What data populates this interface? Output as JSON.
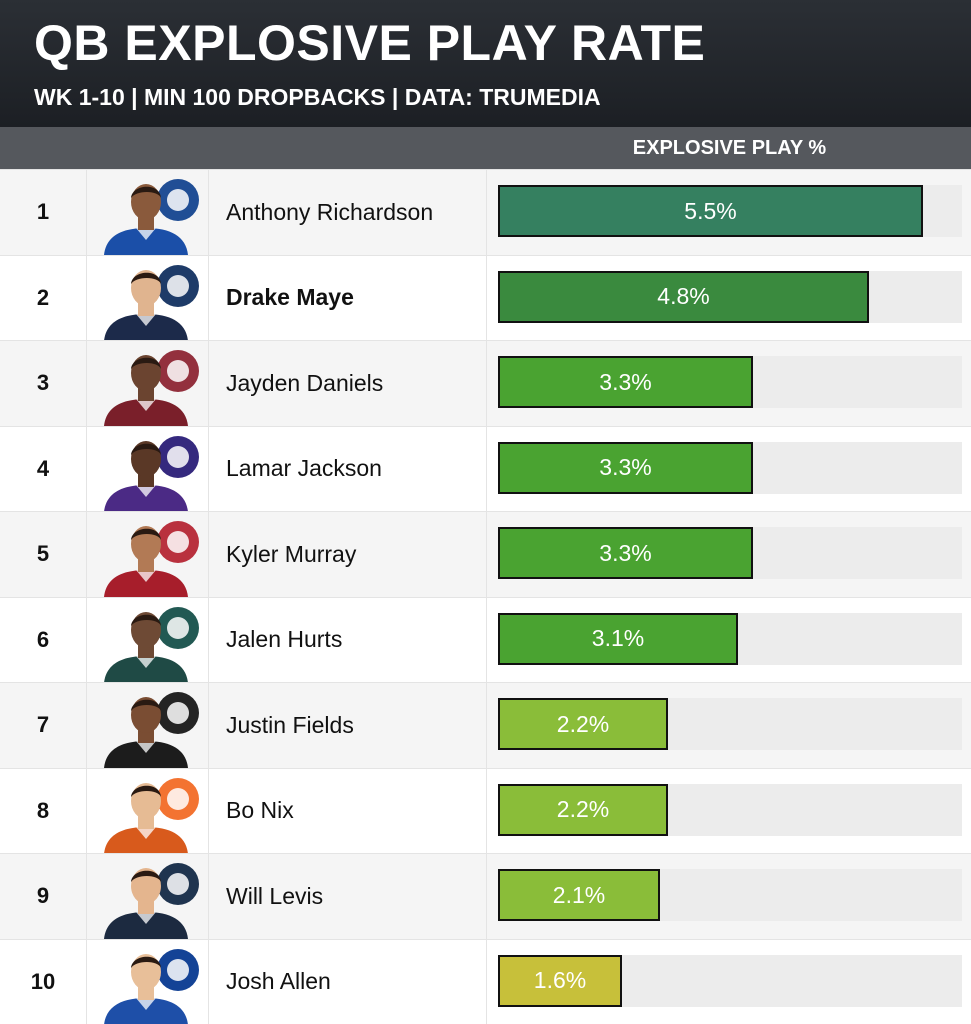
{
  "header": {
    "title": "QB EXPLOSIVE PLAY RATE",
    "subtitle": "WK 1-10 | MIN 100 DROPBACKS | DATA: TRUMEDIA",
    "column_label": "EXPLOSIVE PLAY %"
  },
  "chart_data": {
    "type": "bar",
    "orientation": "horizontal",
    "title": "QB EXPLOSIVE PLAY RATE",
    "subtitle": "WK 1-10 | MIN 100 DROPBACKS | DATA: TRUMEDIA",
    "value_label": "EXPLOSIVE PLAY %",
    "xlim": [
      0,
      6
    ],
    "categories": [
      "Anthony Richardson",
      "Drake Maye",
      "Jayden Daniels",
      "Lamar Jackson",
      "Kyler Murray",
      "Jalen Hurts",
      "Justin Fields",
      "Bo Nix",
      "Will Levis",
      "Josh Allen"
    ],
    "values": [
      5.5,
      4.8,
      3.3,
      3.3,
      3.3,
      3.1,
      2.2,
      2.2,
      2.1,
      1.6
    ],
    "rows": [
      {
        "rank": "1",
        "name": "Anthony Richardson",
        "value": 5.5,
        "label": "5.5%",
        "bar_color": "#358060",
        "bold": false,
        "jersey": "#1b4fa8",
        "logo": "colts-horseshoe-logo",
        "logo_color": "#0d3f8c"
      },
      {
        "rank": "2",
        "name": "Drake Maye",
        "value": 4.8,
        "label": "4.8%",
        "bar_color": "#3a8a3e",
        "bold": true,
        "jersey": "#1c2a4a",
        "logo": "patriots-logo",
        "logo_color": "#0b2a5b"
      },
      {
        "rank": "3",
        "name": "Jayden Daniels",
        "value": 3.3,
        "label": "3.3%",
        "bar_color": "#4aa331",
        "bold": false,
        "jersey": "#7a1f2a",
        "logo": "commanders-w-logo",
        "logo_color": "#8a1e2c"
      },
      {
        "rank": "4",
        "name": "Lamar Jackson",
        "value": 3.3,
        "label": "3.3%",
        "bar_color": "#4aa331",
        "bold": false,
        "jersey": "#4b2a85",
        "logo": "ravens-logo",
        "logo_color": "#241773"
      },
      {
        "rank": "5",
        "name": "Kyler Murray",
        "value": 3.3,
        "label": "3.3%",
        "bar_color": "#4aa331",
        "bold": false,
        "jersey": "#a71e2b",
        "logo": "cardinals-logo",
        "logo_color": "#b3202e"
      },
      {
        "rank": "6",
        "name": "Jalen Hurts",
        "value": 3.1,
        "label": "3.1%",
        "bar_color": "#4aa331",
        "bold": false,
        "jersey": "#1f4a45",
        "logo": "eagles-logo",
        "logo_color": "#0f4b44"
      },
      {
        "rank": "7",
        "name": "Justin Fields",
        "value": 2.2,
        "label": "2.2%",
        "bar_color": "#8abd39",
        "bold": false,
        "jersey": "#1c1c1c",
        "logo": "steelers-logo",
        "logo_color": "#111111"
      },
      {
        "rank": "8",
        "name": "Bo Nix",
        "value": 2.2,
        "label": "2.2%",
        "bar_color": "#8abd39",
        "bold": false,
        "jersey": "#d85a1c",
        "logo": "broncos-logo",
        "logo_color": "#f2671f"
      },
      {
        "rank": "9",
        "name": "Will Levis",
        "value": 2.1,
        "label": "2.1%",
        "bar_color": "#8abd39",
        "bold": false,
        "jersey": "#1c2a40",
        "logo": "titans-logo",
        "logo_color": "#0c2340"
      },
      {
        "rank": "10",
        "name": "Josh Allen",
        "value": 1.6,
        "label": "1.6%",
        "bar_color": "#c7c03a",
        "bold": false,
        "jersey": "#1e4fa8",
        "logo": "bills-logo",
        "logo_color": "#00338d"
      }
    ]
  }
}
